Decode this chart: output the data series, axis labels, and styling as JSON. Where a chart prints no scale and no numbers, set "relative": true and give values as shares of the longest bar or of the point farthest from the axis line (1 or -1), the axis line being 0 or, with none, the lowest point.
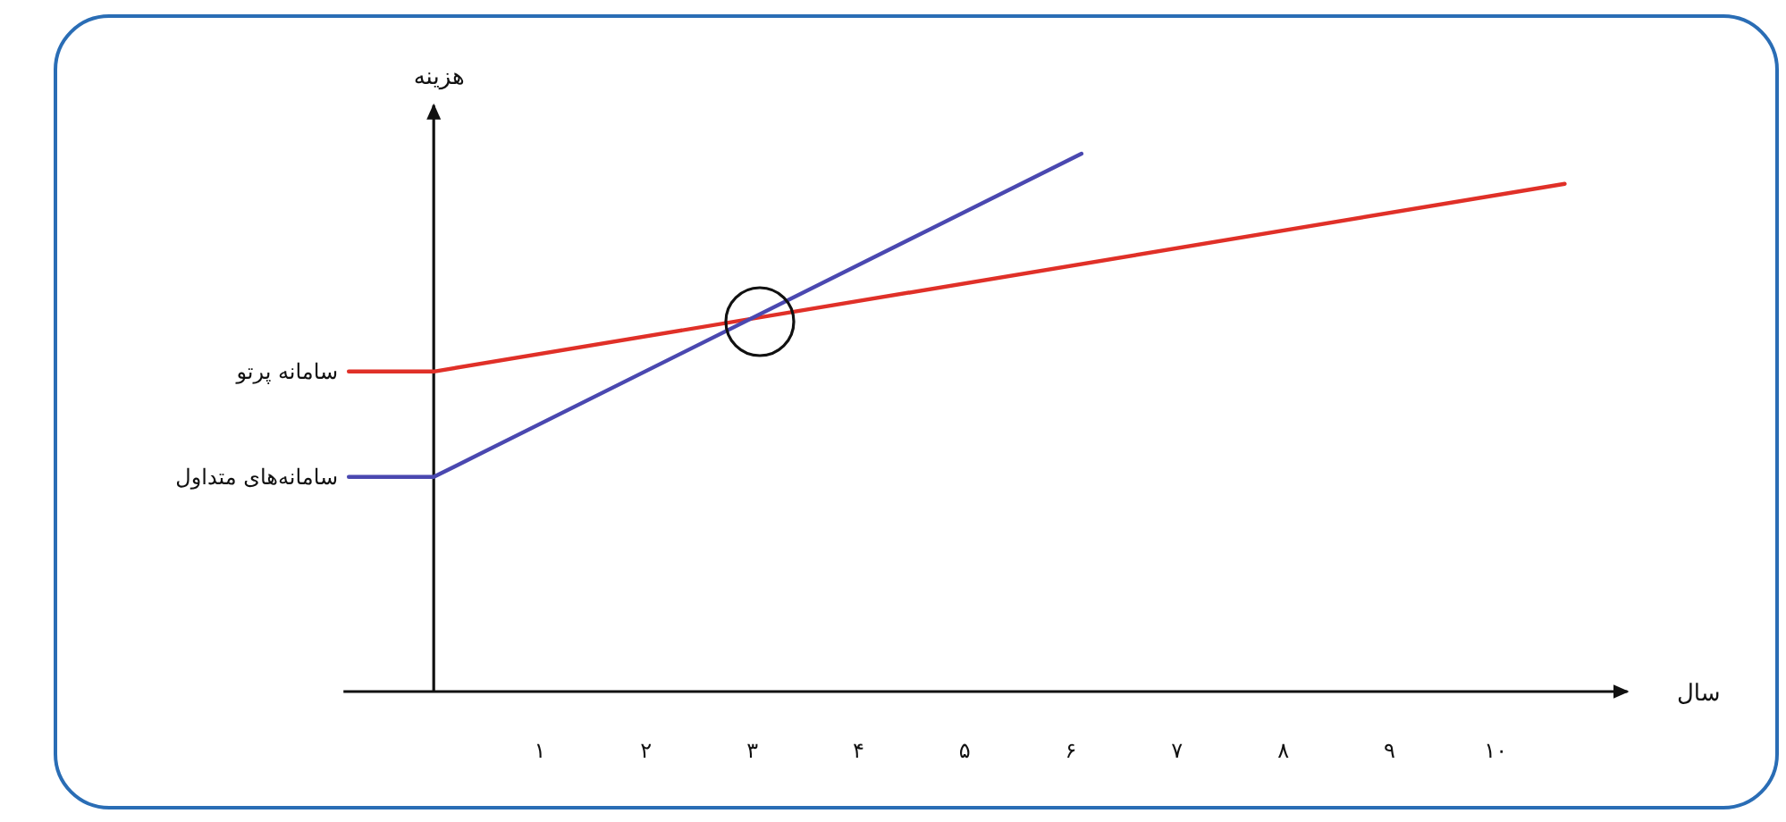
{
  "chart_data": {
    "type": "line",
    "xlabel": "سال",
    "ylabel": "هزینه",
    "relative": true,
    "legend": false,
    "marker": "none",
    "xlim": [
      -0.85,
      11.24
    ],
    "xticks": [
      {
        "value": 1,
        "label": "۱"
      },
      {
        "value": 2,
        "label": "۲"
      },
      {
        "value": 3,
        "label": "۳"
      },
      {
        "value": 4,
        "label": "۴"
      },
      {
        "value": 5,
        "label": "۵"
      },
      {
        "value": 6,
        "label": "۶"
      },
      {
        "value": 7,
        "label": "۷"
      },
      {
        "value": 8,
        "label": "۸"
      },
      {
        "value": 9,
        "label": "۹"
      },
      {
        "value": 10,
        "label": "۱۰"
      }
    ],
    "series": [
      {
        "name": "سامانه پرتو",
        "color": "#e03028",
        "x": [
          -0.8,
          0,
          10.65
        ],
        "values": [
          0.595,
          0.595,
          0.944
        ]
      },
      {
        "name": "سامانه‌های متداول",
        "color": "#4a48b0",
        "x": [
          -0.8,
          0,
          6.1
        ],
        "values": [
          0.399,
          0.399,
          1
        ]
      }
    ]
  }
}
